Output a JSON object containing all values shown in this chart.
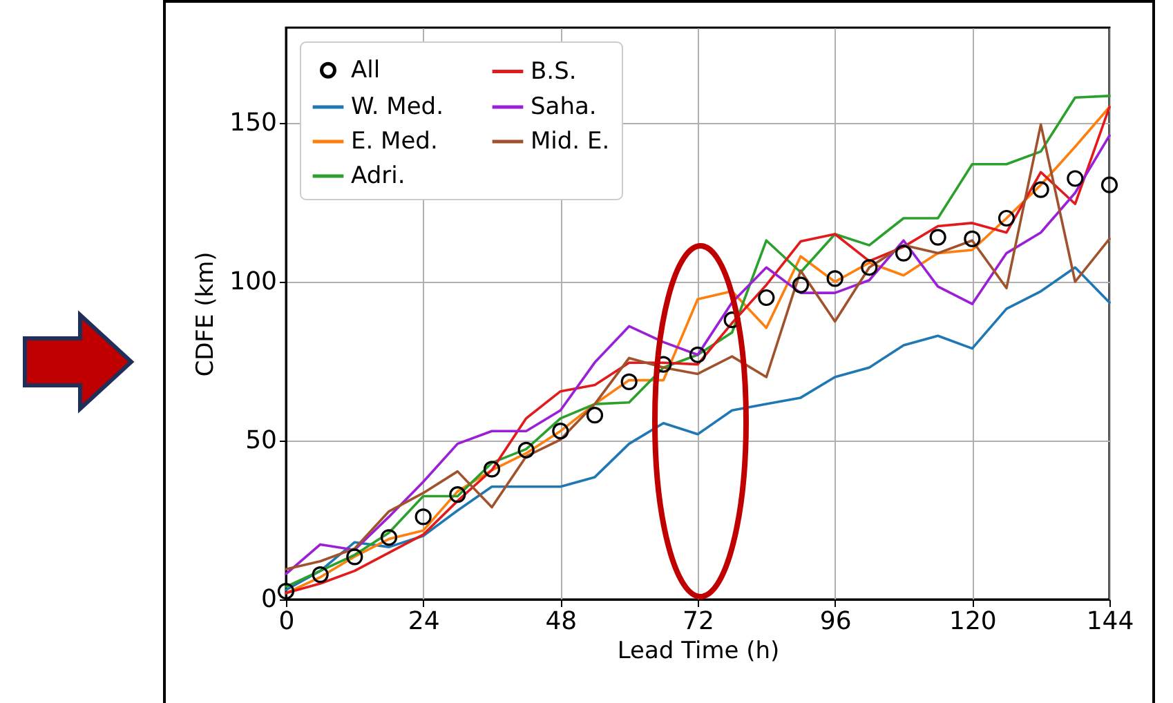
{
  "chart_data": {
    "type": "line",
    "xlabel": "Lead Time (h)",
    "ylabel": "CDFE (km)",
    "x": [
      0,
      6,
      12,
      18,
      24,
      30,
      36,
      42,
      48,
      54,
      60,
      66,
      72,
      78,
      84,
      90,
      96,
      102,
      108,
      114,
      120,
      126,
      132,
      138,
      144
    ],
    "xlim": [
      0,
      144
    ],
    "xticks": [
      0,
      24,
      48,
      72,
      96,
      120,
      144
    ],
    "ylim": [
      0,
      180
    ],
    "yticks": [
      0,
      50,
      100,
      150
    ],
    "grid": true,
    "legend": "top left",
    "line_style": "solid",
    "series": [
      {
        "name": "All",
        "type": "scatter",
        "marker": "circle",
        "color": "#000000",
        "values": [
          2.6,
          7.8,
          13.4,
          19.5,
          26,
          33,
          41,
          47,
          53,
          58,
          68.5,
          74,
          77,
          88,
          95,
          99,
          101,
          104.5,
          109,
          114,
          113.5,
          120,
          129,
          132.5,
          130.5
        ]
      },
      {
        "name": "W. Med.",
        "color": "#1f77b4",
        "values": [
          3,
          9,
          18,
          16.5,
          20,
          28,
          35.5,
          35.5,
          35.5,
          38.5,
          49,
          55.5,
          52,
          59.5,
          61.5,
          63.5,
          70,
          73,
          80,
          83,
          79,
          91.5,
          97,
          104.5,
          93.5
        ]
      },
      {
        "name": "E. Med.",
        "color": "#ff7f0e",
        "values": [
          2,
          7,
          13.5,
          19,
          21.7,
          34,
          40.7,
          46,
          53,
          61.5,
          69,
          69,
          94.5,
          97,
          85.5,
          108,
          100,
          106,
          102,
          109,
          110,
          120,
          130.5,
          142.5,
          155
        ]
      },
      {
        "name": "Adri.",
        "color": "#2ca02c",
        "values": [
          4,
          9,
          14,
          21,
          32.5,
          32.5,
          43,
          47.3,
          57,
          61.5,
          62,
          73,
          77,
          84,
          113,
          103,
          115,
          111.5,
          120,
          120,
          137,
          137,
          141,
          158,
          158.5
        ]
      },
      {
        "name": "B.S.",
        "color": "#e31a1c",
        "values": [
          2,
          5,
          9,
          14.7,
          20.4,
          31,
          40.7,
          57,
          65.5,
          67.5,
          74.5,
          74.5,
          74,
          87,
          99,
          112.7,
          115,
          106.5,
          111,
          117.5,
          118.5,
          115.5,
          134.5,
          124.5,
          155
        ]
      },
      {
        "name": "Saha.",
        "color": "#9b1fd6",
        "values": [
          8,
          17.3,
          15.6,
          26,
          37,
          49,
          53,
          53,
          59.5,
          74.6,
          86,
          81,
          77,
          93.5,
          104.5,
          96.5,
          96.5,
          100.5,
          113,
          98.5,
          93,
          109,
          115.5,
          128,
          146
        ]
      },
      {
        "name": "Mid. E.",
        "color": "#a0522d",
        "values": [
          9.5,
          12,
          16,
          27.7,
          33.5,
          40.3,
          29,
          45,
          50.3,
          61.5,
          76,
          73,
          71,
          76.5,
          70,
          103.5,
          87.5,
          104.5,
          111.5,
          109,
          113,
          98,
          149.5,
          100,
          113.5
        ]
      }
    ]
  }
}
